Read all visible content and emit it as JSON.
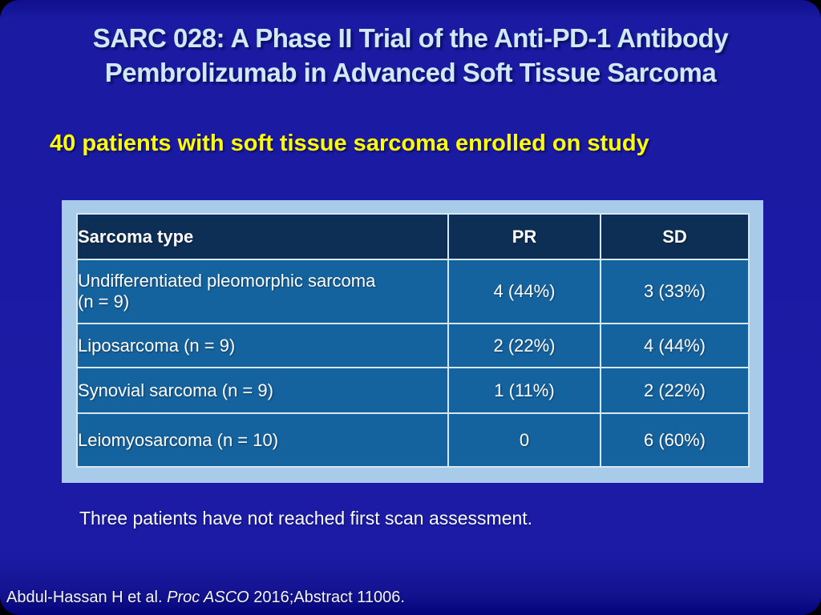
{
  "slide": {
    "title": {
      "lines": [
        "SARC 028: A Phase II Trial of the Anti-PD-1 Antibody",
        "Pembrolizumab in Advanced Soft Tissue Sarcoma"
      ]
    },
    "subtitle": "40 patients with soft tissue sarcoma enrolled on study",
    "table": {
      "headers": [
        "Sarcoma type",
        "PR",
        "SD"
      ],
      "rows": [
        {
          "type": "Undifferentiated pleomorphic sarcoma\n(n = 9)",
          "pr": "4 (44%)",
          "sd": "3 (33%)"
        },
        {
          "type": "Liposarcoma (n = 9)",
          "pr": "2 (22%)",
          "sd": "4 (44%)"
        },
        {
          "type": "Synovial sarcoma (n = 9)",
          "pr": "1 (11%)",
          "sd": "2 (22%)"
        },
        {
          "type": "Leiomyosarcoma (n = 10)",
          "pr": "0",
          "sd": "6 (60%)"
        }
      ]
    },
    "note": "Three patients have not reached first scan assessment.",
    "citation": {
      "prefix": "Abdul-Hassan H et al. ",
      "italic": "Proc ASCO ",
      "suffix": "2016;Abstract 11006."
    }
  },
  "colors": {
    "slide_background": "#1b1ba6",
    "title_text": "#cfe9f7",
    "subtitle_text": "#ffff00",
    "table_panel": "#a7cbe9",
    "table_header_bg": "#0d2f55",
    "table_body_bg": "#15639e",
    "table_border": "#d5e7f5",
    "body_text": "#ffffff"
  }
}
